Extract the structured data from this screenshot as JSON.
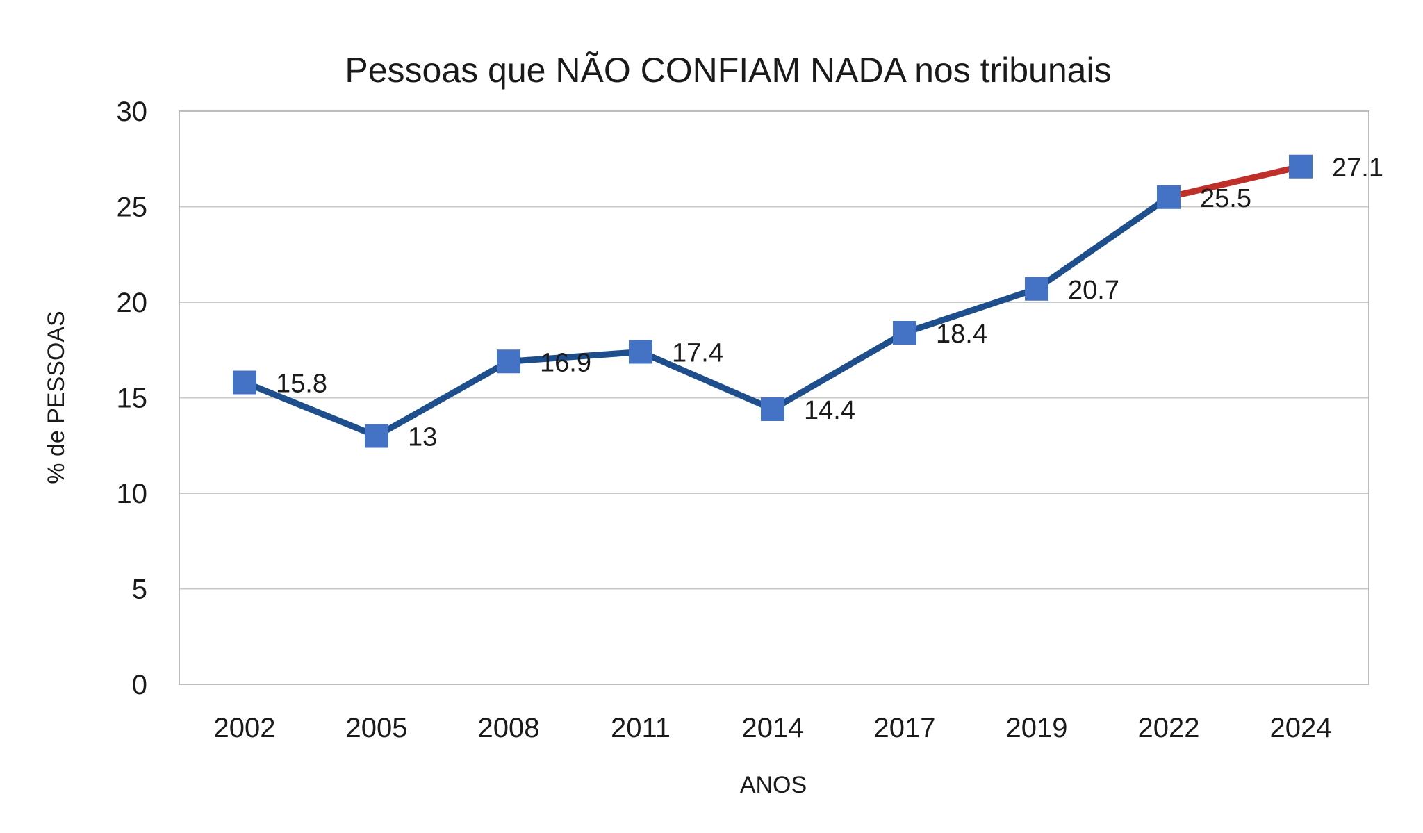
{
  "chart_data": {
    "type": "line",
    "title": "Pessoas que NÃO CONFIAM NADA nos tribunais",
    "xlabel": "ANOS",
    "ylabel": "% de PESSOAS",
    "categories": [
      "2002",
      "2005",
      "2008",
      "2011",
      "2014",
      "2017",
      "2019",
      "2022",
      "2024"
    ],
    "series": [
      {
        "values": [
          15.8,
          13,
          16.9,
          17.4,
          14.4,
          18.4,
          20.7,
          25.5,
          27.1
        ],
        "data_labels": [
          "15.8",
          "13",
          "16.9",
          "17.4",
          "14.4",
          "18.4",
          "20.7",
          "25.5",
          "27.1"
        ],
        "line_color": "#1f4e8c",
        "marker_color": "#4472c4",
        "highlight_last_segment_color": "#c0302a"
      }
    ],
    "ylim": [
      0,
      30
    ],
    "yticks": [
      "0",
      "5",
      "10",
      "15",
      "20",
      "25",
      "30"
    ],
    "grid": true,
    "legend": "none"
  }
}
